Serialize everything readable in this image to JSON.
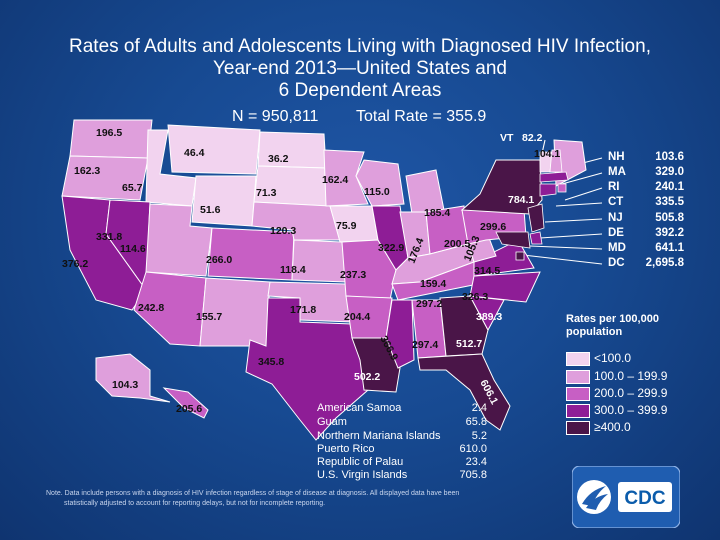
{
  "title": {
    "line1": "Rates of Adults and Adolescents Living with Diagnosed HIV Infection,",
    "line2": "Year-end 2013—United States and",
    "line3": "6 Dependent Areas"
  },
  "subtitle": {
    "n": "N = 950,811",
    "total_rate": "Total Rate = 355.9"
  },
  "states": [
    {
      "code": "WA",
      "value": "196.5"
    },
    {
      "code": "OR",
      "value": "162.3"
    },
    {
      "code": "ID",
      "value": "65.7"
    },
    {
      "code": "MT",
      "value": "46.4"
    },
    {
      "code": "WY",
      "value": "51.6"
    },
    {
      "code": "CA",
      "value": "376.2"
    },
    {
      "code": "NV",
      "value": "331.8"
    },
    {
      "code": "UT",
      "value": "114.6"
    },
    {
      "code": "AZ",
      "value": "242.8"
    },
    {
      "code": "CO",
      "value": "266.0"
    },
    {
      "code": "NM",
      "value": "155.7"
    },
    {
      "code": "ND",
      "value": "36.2"
    },
    {
      "code": "SD",
      "value": "71.3"
    },
    {
      "code": "NE",
      "value": "120.3"
    },
    {
      "code": "KS",
      "value": "118.4"
    },
    {
      "code": "OK",
      "value": "171.8"
    },
    {
      "code": "TX",
      "value": "345.8"
    },
    {
      "code": "MN",
      "value": "162.4"
    },
    {
      "code": "IA",
      "value": "75.9"
    },
    {
      "code": "MO",
      "value": "237.3"
    },
    {
      "code": "AR",
      "value": "204.4"
    },
    {
      "code": "LA",
      "value": "502.2"
    },
    {
      "code": "WI",
      "value": "115.0"
    },
    {
      "code": "IL",
      "value": "322.9"
    },
    {
      "code": "MI",
      "value": "185.4"
    },
    {
      "code": "IN",
      "value": "176.4"
    },
    {
      "code": "OH",
      "value": "200.5"
    },
    {
      "code": "KY",
      "value": "159.4"
    },
    {
      "code": "TN",
      "value": "297.2"
    },
    {
      "code": "MS",
      "value": "366.9"
    },
    {
      "code": "AL",
      "value": "297.4"
    },
    {
      "code": "GA",
      "value": "512.7"
    },
    {
      "code": "FL",
      "value": "606.1"
    },
    {
      "code": "SC",
      "value": "389.3"
    },
    {
      "code": "NC",
      "value": "326.3"
    },
    {
      "code": "VA",
      "value": "314.5"
    },
    {
      "code": "WV",
      "value": "105.3"
    },
    {
      "code": "PA",
      "value": "299.6"
    },
    {
      "code": "NY",
      "value": "784.1"
    },
    {
      "code": "ME",
      "value": "104.1"
    },
    {
      "code": "AK",
      "value": "104.3"
    },
    {
      "code": "HI",
      "value": "205.6"
    }
  ],
  "vt": {
    "label": "VT",
    "value": "82.2"
  },
  "northeast_list": [
    {
      "code": "NH",
      "value": "103.6"
    },
    {
      "code": "MA",
      "value": "329.0"
    },
    {
      "code": "RI",
      "value": "240.1"
    },
    {
      "code": "CT",
      "value": "335.5"
    },
    {
      "code": "NJ",
      "value": "505.8"
    },
    {
      "code": "DE",
      "value": "392.2"
    },
    {
      "code": "MD",
      "value": "641.1"
    },
    {
      "code": "DC",
      "value": "2,695.8"
    }
  ],
  "dependent_areas": [
    {
      "name": "American Samoa",
      "value": "2.4"
    },
    {
      "name": "Guam",
      "value": "65.8"
    },
    {
      "name": "Northern Mariana Islands",
      "value": "5.2"
    },
    {
      "name": "Puerto Rico",
      "value": "610.0"
    },
    {
      "name": "Republic of Palau",
      "value": "23.4"
    },
    {
      "name": "U.S. Virgin Islands",
      "value": "705.8"
    }
  ],
  "legend": {
    "title": "Rates per 100,000 population",
    "items": [
      {
        "label": "<100.0",
        "color": "#f2d3ef"
      },
      {
        "label": "100.0 – 199.9",
        "color": "#df9fdc"
      },
      {
        "label": "200.0 – 299.9",
        "color": "#c75fc4"
      },
      {
        "label": "300.0 – 399.9",
        "color": "#8e1d96"
      },
      {
        "label": "≥400.0",
        "color": "#4a1548"
      }
    ]
  },
  "note": {
    "line1": "Note. Data include persons with a diagnosis of HIV infection regardless of stage of disease at diagnosis. All displayed data have been",
    "line2": "statistically adjusted to account for reporting delays, but not for incomplete reporting."
  },
  "logo": {
    "text": "CDC",
    "brand_color": "#0b5cab"
  }
}
